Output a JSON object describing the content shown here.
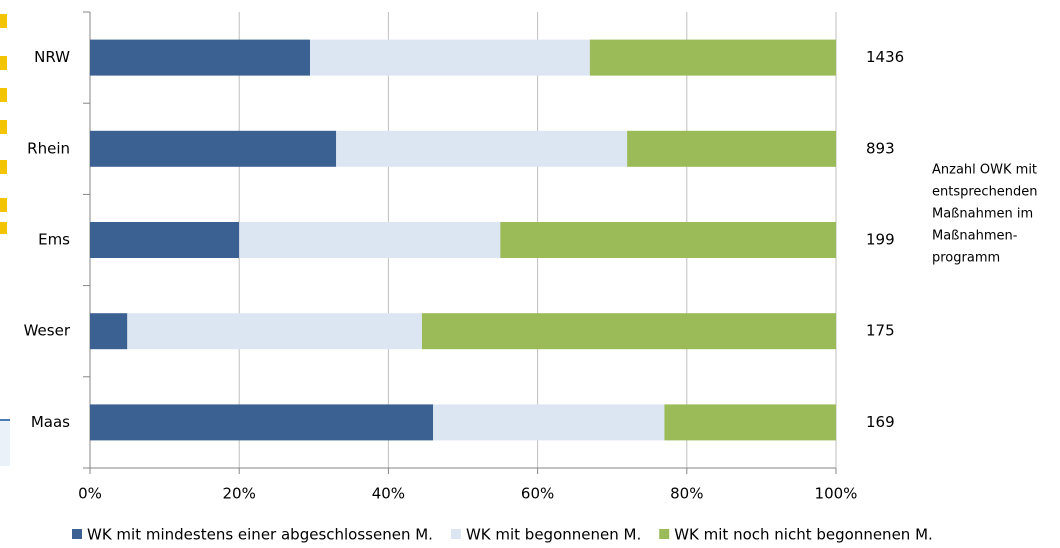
{
  "chart_data": {
    "type": "stacked_barh",
    "categories": [
      "NRW",
      "Rhein",
      "Ems",
      "Weser",
      "Maas"
    ],
    "series": [
      {
        "name": "WK mit mindestens einer abgeschlossenen M.",
        "color": "#3b6192",
        "values": [
          29.5,
          33,
          20,
          5,
          46
        ]
      },
      {
        "name": "WK mit begonnenen M.",
        "color": "#dce6f2",
        "values": [
          37.5,
          39,
          35,
          39.5,
          31
        ]
      },
      {
        "name": "WK mit noch nicht begonnenen M.",
        "color": "#9bbb59",
        "values": [
          33,
          28,
          45,
          55.5,
          23
        ]
      }
    ],
    "counts": [
      1436,
      893,
      199,
      175,
      169
    ],
    "annotation": [
      "Anzahl OWK mit",
      "entsprechenden",
      "Maßnahmen im",
      "Maßnahmen-",
      "programm"
    ],
    "xlim": [
      0,
      100
    ],
    "xticks": [
      {
        "value": 0,
        "label": "0%"
      },
      {
        "value": 20,
        "label": "20%"
      },
      {
        "value": 40,
        "label": "40%"
      },
      {
        "value": 60,
        "label": "60%"
      },
      {
        "value": 80,
        "label": "80%"
      },
      {
        "value": 100,
        "label": "100%"
      }
    ],
    "grid": true
  }
}
